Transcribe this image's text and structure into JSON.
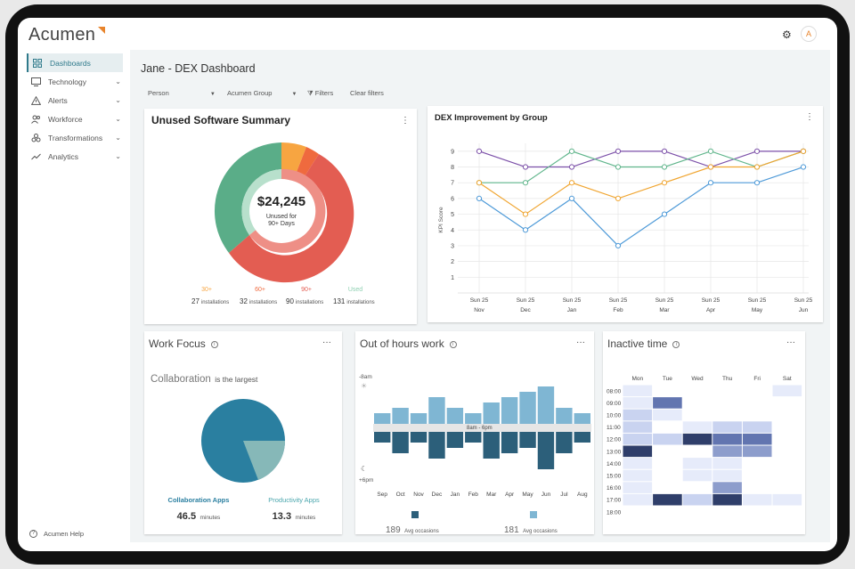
{
  "app": {
    "logo": "Acumen",
    "avatar_initial": "A"
  },
  "sidebar": {
    "items": [
      {
        "label": "Dashboards"
      },
      {
        "label": "Technology"
      },
      {
        "label": "Alerts"
      },
      {
        "label": "Workforce"
      },
      {
        "label": "Transformations"
      },
      {
        "label": "Analytics"
      }
    ],
    "help": "Acumen Help"
  },
  "page": {
    "title": "Jane - DEX Dashboard"
  },
  "filters": {
    "person": "Person",
    "group": "Acumen Group",
    "filters": "Filters",
    "clear": "Clear filters"
  },
  "unused": {
    "title": "Unused Software Summary",
    "amount": "$24,245",
    "subtitle_line1": "Unused for",
    "subtitle_line2": "90+ Days",
    "legend": [
      {
        "label": "30+",
        "count": "27",
        "unit": "installations",
        "color": "#f7a541"
      },
      {
        "label": "60+",
        "count": "32",
        "unit": "installations",
        "color": "#ef6a3e"
      },
      {
        "label": "90+",
        "count": "90",
        "unit": "installations",
        "color": "#e35d52"
      },
      {
        "label": "Used",
        "count": "131",
        "unit": "installations",
        "color": "#8fd0b2"
      }
    ]
  },
  "dex": {
    "title": "DEX Improvement by Group",
    "ylabel": "KPI Score",
    "chart_data": {
      "type": "line",
      "categories": [
        "Sun 25 Nov",
        "Sun 25 Dec",
        "Sun 25 Jan",
        "Sun 25 Feb",
        "Sun 25 Mar",
        "Sun 25 Apr",
        "Sun 25 May",
        "Sun 25 Jun"
      ],
      "category_top": [
        "Sun 25",
        "Sun 25",
        "Sun 25",
        "Sun 25",
        "Sun 25",
        "Sun 25",
        "Sun 25",
        "Sun 25"
      ],
      "category_bottom": [
        "Nov",
        "Dec",
        "Jan",
        "Feb",
        "Mar",
        "Apr",
        "May",
        "Jun"
      ],
      "ylim": [
        0,
        9.5
      ],
      "yticks": [
        "1",
        "2",
        "3",
        "4",
        "5",
        "6",
        "7",
        "8",
        "9"
      ],
      "ylabel": "KPI Score",
      "grid": true,
      "series": [
        {
          "color": "#7b4fa8",
          "values": [
            9,
            8,
            8,
            9,
            9,
            8,
            9,
            9
          ]
        },
        {
          "color": "#5fb58b",
          "values": [
            7,
            7,
            9,
            8,
            8,
            9,
            8,
            9
          ]
        },
        {
          "color": "#f0a530",
          "values": [
            7,
            5,
            7,
            6,
            7,
            8,
            8,
            9
          ]
        },
        {
          "color": "#4e9ad8",
          "values": [
            6,
            4,
            6,
            3,
            5,
            7,
            7,
            8
          ]
        }
      ]
    }
  },
  "workfocus": {
    "title": "Work Focus",
    "headline_main": "Collaboration",
    "headline_rest": "is the largest",
    "chart_data": {
      "type": "pie",
      "slices": [
        {
          "label": "Collaboration Apps",
          "value": 46.5,
          "color": "#2a7fa0"
        },
        {
          "label": "Productivity Apps",
          "value": 13.3,
          "color": "#86b8b8"
        }
      ]
    },
    "items": [
      {
        "label": "Collaboration Apps",
        "value": "46.5",
        "unit": "minutes",
        "color": "#2a7fa0"
      },
      {
        "label": "Productivity Apps",
        "value": "13.3",
        "unit": "minutes",
        "color": "#4aa6ad"
      }
    ]
  },
  "outofhours": {
    "title": "Out of hours work",
    "top_label": "-8am",
    "bottom_label": "+6pm",
    "band_label": "8am - 6pm",
    "chart_data": {
      "type": "bar",
      "categories": [
        "Sep",
        "Oct",
        "Nov",
        "Dec",
        "Jan",
        "Feb",
        "Mar",
        "Apr",
        "May",
        "Jun",
        "Jul",
        "Aug"
      ],
      "series": [
        {
          "name": "-8am",
          "color": "#7fb6d3",
          "values": [
            2,
            3,
            2,
            5,
            3,
            2,
            4,
            5,
            6,
            7,
            3,
            2
          ]
        },
        {
          "name": "+6pm",
          "color": "#2c5f7a",
          "values": [
            2,
            4,
            2,
            5,
            3,
            2,
            5,
            4,
            3,
            7,
            4,
            2
          ]
        }
      ]
    },
    "legend": [
      {
        "count": "189",
        "unit": "Avg occasions",
        "color": "#2c5f7a"
      },
      {
        "count": "181",
        "unit": "Avg occasions",
        "color": "#7fb6d3"
      }
    ]
  },
  "inactive": {
    "title": "Inactive time",
    "chart_data": {
      "type": "heatmap",
      "days": [
        "Mon",
        "Tue",
        "Wed",
        "Thu",
        "Fri",
        "Sat"
      ],
      "hours": [
        "08:00",
        "09:00",
        "10:00",
        "11:00",
        "12:00",
        "13:00",
        "14:00",
        "15:00",
        "16:00",
        "17:00",
        "18:00"
      ],
      "values": [
        [
          1,
          0,
          0,
          0,
          0,
          1
        ],
        [
          1,
          4,
          0,
          0,
          0,
          0
        ],
        [
          2,
          1,
          0,
          0,
          0,
          0
        ],
        [
          2,
          0,
          1,
          2,
          2,
          0
        ],
        [
          2,
          2,
          5,
          4,
          4,
          0
        ],
        [
          5,
          0,
          0,
          3,
          3,
          0
        ],
        [
          1,
          0,
          1,
          1,
          0,
          0
        ],
        [
          1,
          0,
          1,
          1,
          0,
          0
        ],
        [
          1,
          0,
          0,
          3,
          0,
          0
        ],
        [
          1,
          5,
          2,
          5,
          1,
          1
        ],
        [
          0,
          0,
          0,
          0,
          0,
          0
        ]
      ]
    }
  }
}
